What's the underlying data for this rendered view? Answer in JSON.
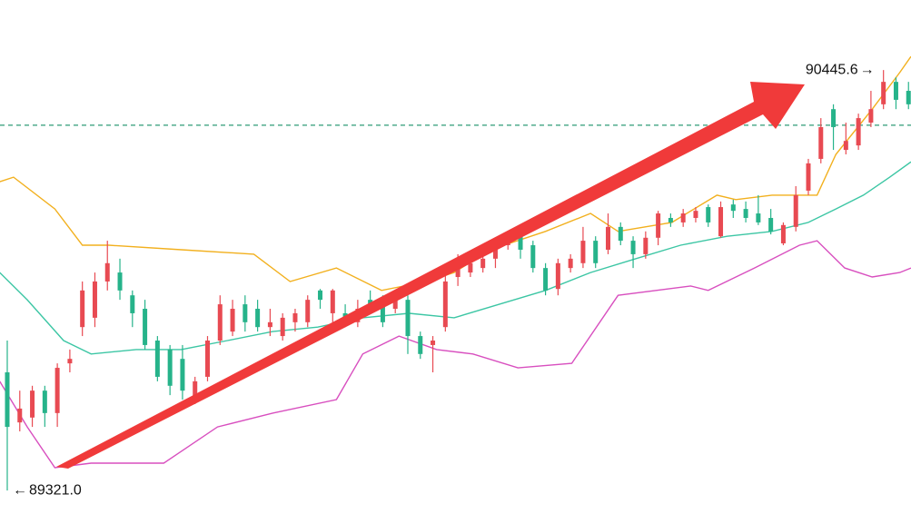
{
  "chart_data": {
    "type": "candlestick",
    "xlim": [
      -0.58,
      72.2
    ],
    "ylim": [
      89258,
      90633
    ],
    "up_color": "#e84a52",
    "down_color": "#26b38a",
    "ohlc": [
      [
        89637,
        89722,
        89321.0,
        89491
      ],
      [
        89503,
        89588,
        89479,
        89540
      ],
      [
        89516,
        89601,
        89491,
        89588
      ],
      [
        89588,
        89601,
        89491,
        89528
      ],
      [
        89528,
        89661,
        89491,
        89649
      ],
      [
        89661,
        89698,
        89637,
        89673
      ],
      [
        89758,
        89880,
        89734,
        89856
      ],
      [
        89783,
        89904,
        89758,
        89880
      ],
      [
        89880,
        89989,
        89856,
        89929
      ],
      [
        89904,
        89941,
        89831,
        89856
      ],
      [
        89843,
        89856,
        89758,
        89795
      ],
      [
        89807,
        89831,
        89698,
        89710
      ],
      [
        89722,
        89734,
        89613,
        89625
      ],
      [
        89698,
        89710,
        89576,
        89601
      ],
      [
        89673,
        89710,
        89564,
        89588
      ],
      [
        89564,
        89625,
        89552,
        89613
      ],
      [
        89625,
        89734,
        89613,
        89722
      ],
      [
        89722,
        89843,
        89710,
        89819
      ],
      [
        89746,
        89831,
        89734,
        89807
      ],
      [
        89819,
        89843,
        89746,
        89771
      ],
      [
        89807,
        89831,
        89746,
        89758
      ],
      [
        89758,
        89807,
        89734,
        89771
      ],
      [
        89734,
        89795,
        89722,
        89783
      ],
      [
        89771,
        89807,
        89746,
        89795
      ],
      [
        89771,
        89843,
        89758,
        89831
      ],
      [
        89856,
        89860,
        89807,
        89831
      ],
      [
        89795,
        89860,
        89771,
        89856
      ],
      [
        89795,
        89819,
        89758,
        89771
      ],
      [
        89771,
        89831,
        89758,
        89807
      ],
      [
        89831,
        89856,
        89795,
        89819
      ],
      [
        89819,
        89843,
        89758,
        89771
      ],
      [
        89807,
        89851,
        89795,
        89836
      ],
      [
        89831,
        89843,
        89686,
        89734
      ],
      [
        89734,
        89746,
        89673,
        89686
      ],
      [
        89710,
        89734,
        89637,
        89722
      ],
      [
        89758,
        89904,
        89746,
        89880
      ],
      [
        89892,
        89953,
        89868,
        89929
      ],
      [
        89904,
        89953,
        89892,
        89929
      ],
      [
        89916,
        89965,
        89904,
        89941
      ],
      [
        89941,
        89989,
        89916,
        89977
      ],
      [
        89977,
        90014,
        89965,
        90001
      ],
      [
        90001,
        90014,
        89941,
        89965
      ],
      [
        89977,
        89989,
        89904,
        89916
      ],
      [
        89916,
        89929,
        89843,
        89856
      ],
      [
        89860,
        89941,
        89843,
        89929
      ],
      [
        89916,
        89953,
        89904,
        89941
      ],
      [
        89929,
        90026,
        89916,
        89989
      ],
      [
        89989,
        90001,
        89916,
        89929
      ],
      [
        89965,
        90062,
        89953,
        90026
      ],
      [
        90026,
        90038,
        89977,
        89989
      ],
      [
        89989,
        90001,
        89916,
        89953
      ],
      [
        89953,
        90014,
        89941,
        89997
      ],
      [
        89997,
        90069,
        89977,
        90062
      ],
      [
        90050,
        90062,
        90026,
        90038
      ],
      [
        90038,
        90074,
        90026,
        90062
      ],
      [
        90050,
        90079,
        90038,
        90069
      ],
      [
        90079,
        90086,
        90026,
        90038
      ],
      [
        90001,
        90094,
        89997,
        90079
      ],
      [
        90086,
        90099,
        90050,
        90069
      ],
      [
        90074,
        90094,
        90038,
        90050
      ],
      [
        90062,
        90111,
        90031,
        90038
      ],
      [
        90050,
        90074,
        90006,
        90014
      ],
      [
        89982,
        90038,
        89977,
        90031
      ],
      [
        90026,
        90135,
        90014,
        90111
      ],
      [
        90123,
        90208,
        90111,
        90196
      ],
      [
        90208,
        90317,
        90196,
        90293
      ],
      [
        90341,
        90354,
        90232,
        90293
      ],
      [
        90232,
        90305,
        90220,
        90256
      ],
      [
        90244,
        90329,
        90232,
        90317
      ],
      [
        90305,
        90390,
        90293,
        90341
      ],
      [
        90354,
        90445.6,
        90341,
        90414
      ],
      [
        90414,
        90426,
        90341,
        90366
      ],
      [
        90390,
        90414,
        90341,
        90354
      ]
    ],
    "series": [
      {
        "name": "upper",
        "color": "#f2b01e",
        "x": [
          -0.6,
          0.5,
          3.8,
          6.0,
          8.1,
          13.9,
          19.7,
          22.6,
          26.3,
          29.9,
          33.5,
          35.7,
          38.6,
          43.0,
          46.6,
          48.8,
          53.1,
          56.7,
          58.2,
          61.1,
          64.7,
          66.2,
          69.1,
          71.3,
          72.2
        ],
        "values": [
          90147,
          90159,
          90074,
          89977,
          89977,
          89965,
          89953,
          89880,
          89916,
          89856,
          89880,
          89904,
          89965,
          90014,
          90062,
          90014,
          90038,
          90111,
          90099,
          90111,
          90111,
          90220,
          90341,
          90439,
          90482
        ]
      },
      {
        "name": "middle",
        "color": "#3cc6a4",
        "x": [
          -0.6,
          1.6,
          4.5,
          6.7,
          10.3,
          13.9,
          17.6,
          21.2,
          24.8,
          28.4,
          32.1,
          35.7,
          39.3,
          43.0,
          46.6,
          50.2,
          53.8,
          57.5,
          61.1,
          64.0,
          66.2,
          68.4,
          70.5,
          72.2
        ],
        "values": [
          89904,
          89831,
          89722,
          89686,
          89698,
          89698,
          89722,
          89746,
          89758,
          89783,
          89795,
          89783,
          89819,
          89856,
          89904,
          89941,
          89977,
          90001,
          90014,
          90038,
          90074,
          90111,
          90159,
          90200
        ]
      },
      {
        "name": "lower",
        "color": "#d84fbf",
        "x": [
          -0.6,
          1.6,
          3.8,
          6.7,
          12.5,
          16.8,
          21.2,
          26.3,
          28.4,
          31.3,
          34.3,
          37.2,
          40.8,
          45.1,
          48.8,
          54.6,
          56.0,
          59.7,
          63.3,
          64.7,
          66.9,
          69.1,
          71.3,
          72.2
        ],
        "values": [
          89613,
          89491,
          89382,
          89394,
          89394,
          89491,
          89528,
          89564,
          89686,
          89734,
          89698,
          89686,
          89649,
          89661,
          89843,
          89868,
          89856,
          89916,
          89977,
          89989,
          89916,
          89892,
          89904,
          89916
        ]
      }
    ],
    "hline": {
      "value": 90298,
      "color": "#2e9b76"
    },
    "annotations": [
      {
        "label": "90445.6",
        "value": 90445.6,
        "x": 70,
        "side": "left"
      },
      {
        "label": "89321.0",
        "value": 89321.0,
        "x": 0,
        "side": "right"
      }
    ]
  }
}
